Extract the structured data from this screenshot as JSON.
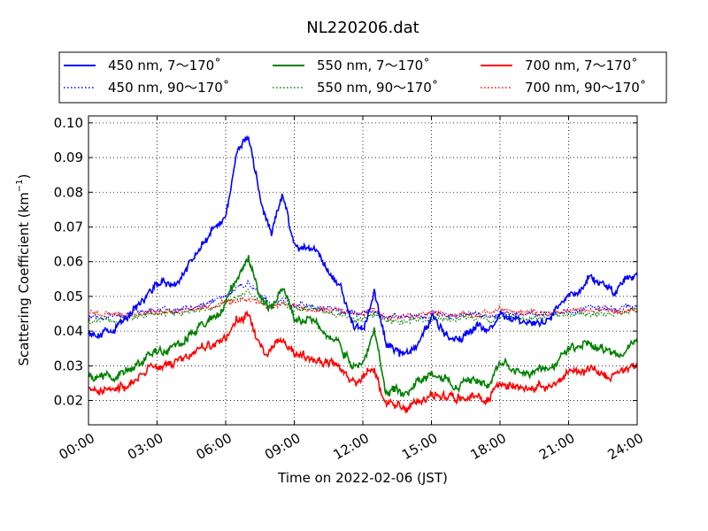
{
  "chart_data": {
    "type": "line",
    "title": "NL220206.dat",
    "xlabel": "Time on 2022-02-06 (JST)",
    "ylabel": "Scattering Coefficient (km",
    "ylabel_exp": "−1",
    "ylabel_end": ")",
    "xlim": [
      "00:00",
      "24:00"
    ],
    "ylim": [
      0.013,
      0.102
    ],
    "grid": true,
    "legend_position": "top",
    "x_ticks": [
      "00:00",
      "03:00",
      "06:00",
      "09:00",
      "12:00",
      "15:00",
      "18:00",
      "21:00",
      "24:00"
    ],
    "y_ticks": [
      "0.02",
      "0.03",
      "0.04",
      "0.05",
      "0.06",
      "0.07",
      "0.08",
      "0.09",
      "0.10"
    ],
    "x_hours": [
      0,
      1,
      2,
      3,
      4,
      5,
      5.5,
      6,
      6.5,
      7,
      7.5,
      8,
      8.5,
      9,
      10,
      11,
      11.5,
      12,
      12.5,
      13,
      14,
      15,
      16,
      17,
      17.5,
      18,
      19,
      20,
      21,
      22,
      23,
      24
    ],
    "series": [
      {
        "name": "450 nm, 7～170˚",
        "color": "#0000ff",
        "style": "solid",
        "values": [
          0.04,
          0.039,
          0.047,
          0.054,
          0.054,
          0.066,
          0.069,
          0.073,
          0.092,
          0.096,
          0.078,
          0.068,
          0.079,
          0.064,
          0.063,
          0.053,
          0.043,
          0.04,
          0.051,
          0.036,
          0.033,
          0.044,
          0.037,
          0.042,
          0.04,
          0.045,
          0.041,
          0.043,
          0.05,
          0.055,
          0.051,
          0.057
        ]
      },
      {
        "name": "550 nm, 7～170˚",
        "color": "#008000",
        "style": "solid",
        "values": [
          0.028,
          0.027,
          0.03,
          0.034,
          0.036,
          0.042,
          0.044,
          0.048,
          0.055,
          0.062,
          0.049,
          0.046,
          0.053,
          0.044,
          0.042,
          0.037,
          0.03,
          0.03,
          0.041,
          0.022,
          0.023,
          0.028,
          0.025,
          0.026,
          0.024,
          0.031,
          0.028,
          0.029,
          0.034,
          0.037,
          0.033,
          0.037
        ]
      },
      {
        "name": "700 nm, 7～170˚",
        "color": "#ff0000",
        "style": "solid",
        "values": [
          0.024,
          0.023,
          0.026,
          0.03,
          0.031,
          0.035,
          0.036,
          0.037,
          0.043,
          0.045,
          0.035,
          0.034,
          0.038,
          0.033,
          0.032,
          0.029,
          0.025,
          0.026,
          0.03,
          0.019,
          0.018,
          0.021,
          0.021,
          0.022,
          0.021,
          0.026,
          0.024,
          0.024,
          0.028,
          0.029,
          0.027,
          0.03
        ]
      },
      {
        "name": "450 nm, 90～170˚",
        "color": "#0000ff",
        "style": "dotted",
        "values": [
          0.044,
          0.044,
          0.045,
          0.046,
          0.046,
          0.048,
          0.049,
          0.05,
          0.053,
          0.054,
          0.05,
          0.048,
          0.049,
          0.048,
          0.047,
          0.046,
          0.045,
          0.045,
          0.046,
          0.044,
          0.044,
          0.045,
          0.044,
          0.045,
          0.044,
          0.045,
          0.045,
          0.045,
          0.046,
          0.047,
          0.046,
          0.047
        ]
      },
      {
        "name": "550 nm, 90～170˚",
        "color": "#008000",
        "style": "dotted",
        "values": [
          0.043,
          0.043,
          0.044,
          0.045,
          0.045,
          0.046,
          0.047,
          0.048,
          0.05,
          0.051,
          0.048,
          0.047,
          0.048,
          0.047,
          0.046,
          0.045,
          0.044,
          0.044,
          0.045,
          0.043,
          0.043,
          0.044,
          0.043,
          0.044,
          0.043,
          0.044,
          0.044,
          0.044,
          0.045,
          0.045,
          0.045,
          0.046
        ]
      },
      {
        "name": "700 nm, 90～170˚",
        "color": "#ff0000",
        "style": "dotted",
        "values": [
          0.045,
          0.045,
          0.045,
          0.046,
          0.046,
          0.047,
          0.047,
          0.048,
          0.049,
          0.049,
          0.048,
          0.047,
          0.048,
          0.047,
          0.046,
          0.046,
          0.045,
          0.045,
          0.046,
          0.044,
          0.044,
          0.045,
          0.045,
          0.045,
          0.045,
          0.046,
          0.045,
          0.045,
          0.046,
          0.046,
          0.046,
          0.046
        ]
      }
    ]
  }
}
